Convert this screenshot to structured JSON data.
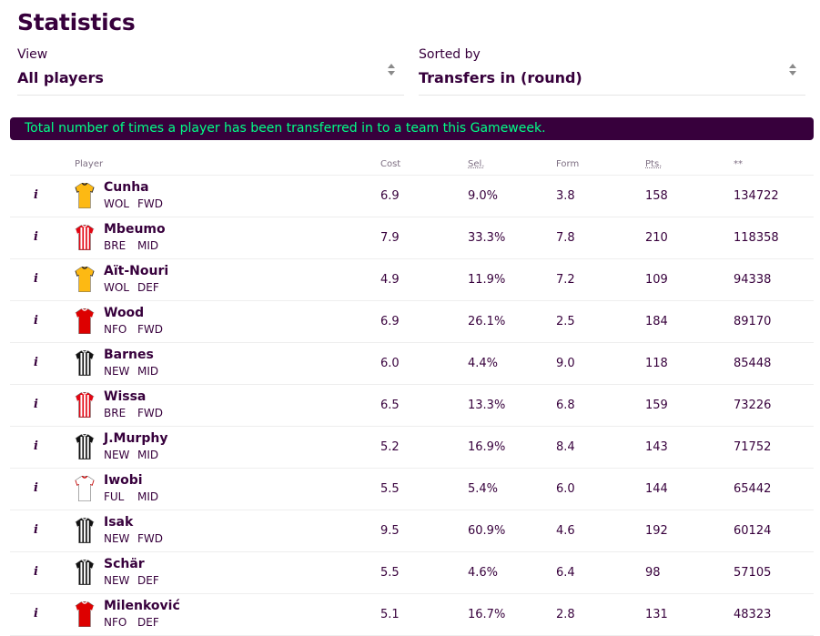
{
  "page": {
    "title": "Statistics"
  },
  "filters": {
    "view": {
      "label": "View",
      "value": "All players"
    },
    "sort": {
      "label": "Sorted by",
      "value": "Transfers in (round)"
    }
  },
  "banner": "Total number of times a player has been transferred in to a team this Gameweek.",
  "table": {
    "headers": {
      "player": "Player",
      "cost": "Cost",
      "sel": "Sel.",
      "form": "Form",
      "pts": "Pts.",
      "stat": "**"
    },
    "info_label": "i",
    "rows": [
      {
        "name": "Cunha",
        "team": "WOL",
        "pos": "FWD",
        "cost": "6.9",
        "sel": "9.0%",
        "form": "3.8",
        "pts": "158",
        "stat": "134722",
        "kit": "wolves"
      },
      {
        "name": "Mbeumo",
        "team": "BRE",
        "pos": "MID",
        "cost": "7.9",
        "sel": "33.3%",
        "form": "7.8",
        "pts": "210",
        "stat": "118358",
        "kit": "brentford"
      },
      {
        "name": "Aït-Nouri",
        "team": "WOL",
        "pos": "DEF",
        "cost": "4.9",
        "sel": "11.9%",
        "form": "7.2",
        "pts": "109",
        "stat": "94338",
        "kit": "wolves"
      },
      {
        "name": "Wood",
        "team": "NFO",
        "pos": "FWD",
        "cost": "6.9",
        "sel": "26.1%",
        "form": "2.5",
        "pts": "184",
        "stat": "89170",
        "kit": "forest"
      },
      {
        "name": "Barnes",
        "team": "NEW",
        "pos": "MID",
        "cost": "6.0",
        "sel": "4.4%",
        "form": "9.0",
        "pts": "118",
        "stat": "85448",
        "kit": "newcastle"
      },
      {
        "name": "Wissa",
        "team": "BRE",
        "pos": "FWD",
        "cost": "6.5",
        "sel": "13.3%",
        "form": "6.8",
        "pts": "159",
        "stat": "73226",
        "kit": "brentford"
      },
      {
        "name": "J.Murphy",
        "team": "NEW",
        "pos": "MID",
        "cost": "5.2",
        "sel": "16.9%",
        "form": "8.4",
        "pts": "143",
        "stat": "71752",
        "kit": "newcastle"
      },
      {
        "name": "Iwobi",
        "team": "FUL",
        "pos": "MID",
        "cost": "5.5",
        "sel": "5.4%",
        "form": "6.0",
        "pts": "144",
        "stat": "65442",
        "kit": "fulham"
      },
      {
        "name": "Isak",
        "team": "NEW",
        "pos": "FWD",
        "cost": "9.5",
        "sel": "60.9%",
        "form": "4.6",
        "pts": "192",
        "stat": "60124",
        "kit": "newcastle"
      },
      {
        "name": "Schär",
        "team": "NEW",
        "pos": "DEF",
        "cost": "5.5",
        "sel": "4.6%",
        "form": "6.4",
        "pts": "98",
        "stat": "57105",
        "kit": "newcastle"
      },
      {
        "name": "Milenković",
        "team": "NFO",
        "pos": "DEF",
        "cost": "5.1",
        "sel": "16.7%",
        "form": "2.8",
        "pts": "131",
        "stat": "48323",
        "kit": "forest"
      }
    ]
  },
  "colors": {
    "primary": "#37003c",
    "accent": "#00ff87",
    "divider": "#eeeeee"
  }
}
